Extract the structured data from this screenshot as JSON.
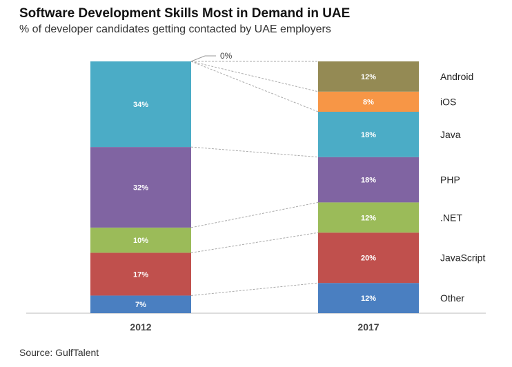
{
  "title": "Software Development Skills Most in Demand in UAE",
  "subtitle": "% of developer candidates getting contacted by UAE employers",
  "source": "Source: GulfTalent",
  "chart_data": {
    "type": "bar",
    "stacked": true,
    "unit": "%",
    "categories": [
      "2012",
      "2017"
    ],
    "series": [
      {
        "name": "Other",
        "values": [
          7,
          12
        ],
        "labels": [
          "7%",
          "12%"
        ],
        "color": "#4a7fc1"
      },
      {
        "name": "JavaScript",
        "values": [
          17,
          20
        ],
        "labels": [
          "17%",
          "20%"
        ],
        "color": "#c0504d"
      },
      {
        "name": ".NET",
        "values": [
          10,
          12
        ],
        "labels": [
          "10%",
          "12%"
        ],
        "color": "#9bbb59"
      },
      {
        "name": "PHP",
        "values": [
          32,
          18
        ],
        "labels": [
          "32%",
          "18%"
        ],
        "color": "#8064a2"
      },
      {
        "name": "Java",
        "values": [
          34,
          18
        ],
        "labels": [
          "34%",
          "18%"
        ],
        "color": "#4bacc6"
      },
      {
        "name": "iOS",
        "values": [
          0,
          8
        ],
        "labels": [
          "0%",
          "8%"
        ],
        "color": "#f79646"
      },
      {
        "name": "Android",
        "values": [
          0,
          12
        ],
        "labels": [
          "0%",
          "12%"
        ],
        "color": "#948a54"
      }
    ],
    "zero_annotation": "0%",
    "legend": "right, labels beside 2017 bar",
    "grid": false
  }
}
